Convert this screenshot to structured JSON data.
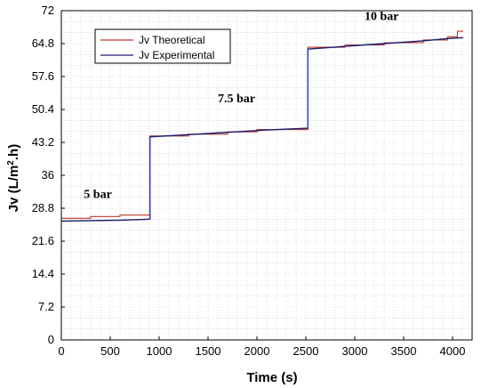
{
  "chart_data": {
    "type": "line",
    "title": "",
    "xlabel": "Time (s)",
    "ylabel_main": "Jv (L/m",
    "ylabel_sup": "2",
    "ylabel_tail": ".h)",
    "xlim": [
      0,
      4200
    ],
    "ylim": [
      0,
      72
    ],
    "xticks": [
      0,
      500,
      1000,
      1500,
      2000,
      2500,
      3000,
      3500,
      4000
    ],
    "yticks": [
      0,
      7.2,
      14.4,
      21.6,
      28.8,
      36,
      43.2,
      50.4,
      57.6,
      64.8,
      72
    ],
    "ytick_labels": [
      "0",
      "7.2",
      "14.4",
      "21.6",
      "28.8",
      "36",
      "43.2",
      "50.4",
      "57.6",
      "64.8",
      "72"
    ],
    "grid": true,
    "legend_position": "top-left",
    "colors": {
      "theoretical": "#c0392b",
      "experimental": "#1a1a6e",
      "step": "#3344cc"
    },
    "annotations": [
      {
        "text": "5 bar",
        "x": 230,
        "y": 31
      },
      {
        "text": "7.5 bar",
        "x": 1600,
        "y": 52
      },
      {
        "text": "10 bar",
        "x": 3100,
        "y": 70
      }
    ],
    "series": [
      {
        "name": "Jv Theoretical",
        "x": [
          0,
          300,
          300,
          600,
          600,
          905,
          905,
          1300,
          1300,
          1700,
          1700,
          2000,
          2000,
          2520,
          2520,
          2900,
          2900,
          3300,
          3300,
          3700,
          3700,
          3950,
          3950,
          4050,
          4050,
          4110
        ],
        "y": [
          26.6,
          26.6,
          27.0,
          27.0,
          27.3,
          27.3,
          44.6,
          44.6,
          45.0,
          45.0,
          45.5,
          45.5,
          46.0,
          46.0,
          64.0,
          64.0,
          64.5,
          64.5,
          65.0,
          65.0,
          65.6,
          65.6,
          66.3,
          66.3,
          67.5,
          67.5
        ]
      },
      {
        "name": "Jv Experimental",
        "x": [
          0,
          300,
          600,
          905,
          905,
          1300,
          1700,
          2100,
          2520,
          2520,
          2900,
          3300,
          3700,
          3950,
          4110
        ],
        "y": [
          26.0,
          26.1,
          26.2,
          26.4,
          44.4,
          44.9,
          45.4,
          45.9,
          46.3,
          63.6,
          64.2,
          64.8,
          65.4,
          65.9,
          66.1
        ]
      }
    ]
  }
}
